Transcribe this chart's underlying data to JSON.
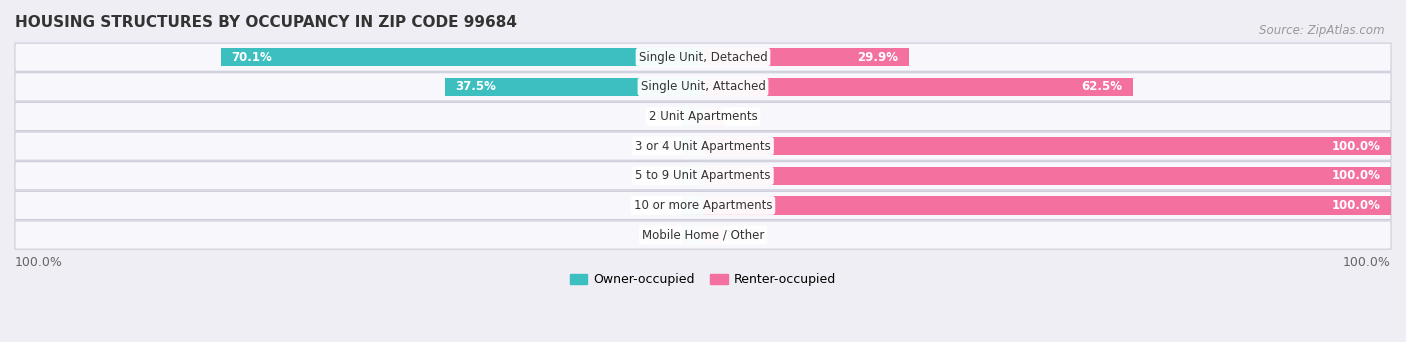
{
  "title": "HOUSING STRUCTURES BY OCCUPANCY IN ZIP CODE 99684",
  "source": "Source: ZipAtlas.com",
  "categories": [
    "Single Unit, Detached",
    "Single Unit, Attached",
    "2 Unit Apartments",
    "3 or 4 Unit Apartments",
    "5 to 9 Unit Apartments",
    "10 or more Apartments",
    "Mobile Home / Other"
  ],
  "owner_pct": [
    70.1,
    37.5,
    0.0,
    0.0,
    0.0,
    0.0,
    0.0
  ],
  "renter_pct": [
    29.9,
    62.5,
    0.0,
    100.0,
    100.0,
    100.0,
    0.0
  ],
  "owner_color": "#3DBFC0",
  "renter_color": "#F4719F",
  "owner_label": "Owner-occupied",
  "renter_label": "Renter-occupied",
  "bg_color": "#EEEEF4",
  "row_bg_color": "#F8F8FC",
  "row_border_color": "#CCCCDA",
  "title_fontsize": 11,
  "source_fontsize": 8.5,
  "bar_fontsize": 8.5,
  "label_fontsize": 8.5,
  "legend_fontsize": 9,
  "axis_label_left": "100.0%",
  "axis_label_right": "100.0%",
  "zero_owner_stub": 3.0,
  "zero_renter_stub": 3.0
}
